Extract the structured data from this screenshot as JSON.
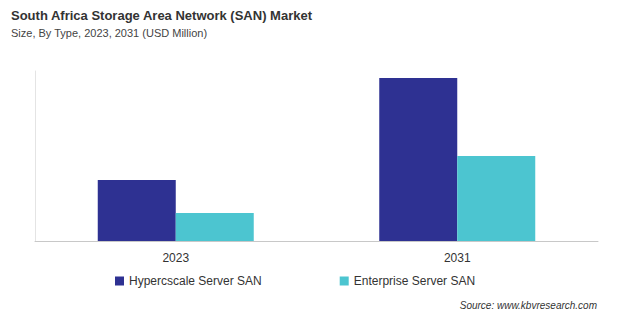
{
  "chart_data": {
    "type": "bar",
    "title": "South Africa Storage Area Network (SAN) Market",
    "subtitle": "Size, By Type, 2023, 2031 (USD Million)",
    "source": "Source: www.kbvresearch.com",
    "categories": [
      "2023",
      "2031"
    ],
    "series": [
      {
        "name": "Hypercscale Server SAN",
        "color": "#2e3192",
        "values": [
          61,
          163
        ]
      },
      {
        "name": "Enterprise Server SAN",
        "color": "#4cc5d0",
        "values": [
          28,
          85
        ]
      }
    ],
    "ylim": [
      0,
      170
    ],
    "grid": false,
    "legend": "bottom",
    "tick_labels": "x"
  }
}
